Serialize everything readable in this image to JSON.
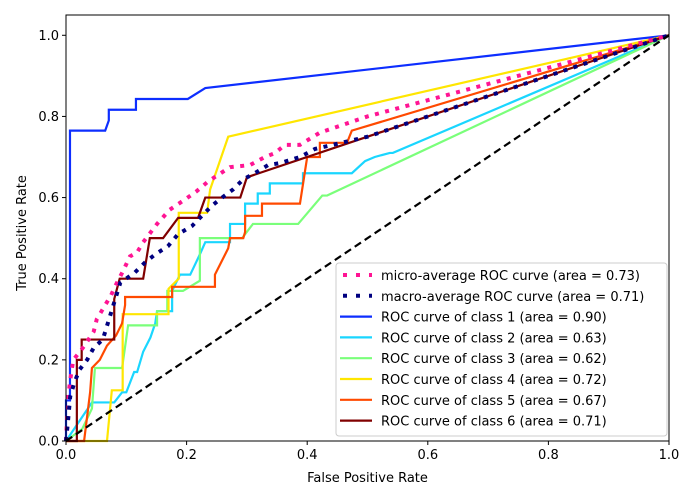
{
  "chart_data": {
    "type": "line",
    "title": "",
    "xlabel": "False Positive Rate",
    "ylabel": "True Positive Rate",
    "xlim": [
      0.0,
      1.0
    ],
    "ylim": [
      0.0,
      1.05
    ],
    "xticks": [
      0.0,
      0.2,
      0.4,
      0.6,
      0.8,
      1.0
    ],
    "yticks": [
      0.0,
      0.2,
      0.4,
      0.6,
      0.8,
      1.0
    ],
    "xtick_labels": [
      "0.0",
      "0.2",
      "0.4",
      "0.6",
      "0.8",
      "1.0"
    ],
    "ytick_labels": [
      "0.0",
      "0.2",
      "0.4",
      "0.6",
      "0.8",
      "1.0"
    ],
    "grid": false,
    "legend_position": "lower-right",
    "series": [
      {
        "name": "micro-average ROC curve (area = 0.73)",
        "color": "#ff1493",
        "style": "dotted",
        "points": [
          [
            0.0,
            0.0
          ],
          [
            0.003,
            0.1
          ],
          [
            0.007,
            0.15
          ],
          [
            0.012,
            0.2
          ],
          [
            0.023,
            0.22
          ],
          [
            0.033,
            0.24
          ],
          [
            0.046,
            0.27
          ],
          [
            0.051,
            0.3
          ],
          [
            0.065,
            0.335
          ],
          [
            0.075,
            0.36
          ],
          [
            0.081,
            0.38
          ],
          [
            0.095,
            0.42
          ],
          [
            0.106,
            0.455
          ],
          [
            0.118,
            0.465
          ],
          [
            0.128,
            0.49
          ],
          [
            0.151,
            0.535
          ],
          [
            0.172,
            0.57
          ],
          [
            0.197,
            0.595
          ],
          [
            0.216,
            0.615
          ],
          [
            0.236,
            0.64
          ],
          [
            0.272,
            0.675
          ],
          [
            0.305,
            0.68
          ],
          [
            0.33,
            0.7
          ],
          [
            0.347,
            0.71
          ],
          [
            0.363,
            0.73
          ],
          [
            0.388,
            0.73
          ],
          [
            0.421,
            0.76
          ],
          [
            0.5,
            0.8
          ],
          [
            0.75,
            0.9
          ],
          [
            1.0,
            1.0
          ]
        ]
      },
      {
        "name": "macro-average ROC curve (area = 0.71)",
        "color": "#000080",
        "style": "dotted",
        "points": [
          [
            0.0,
            0.0
          ],
          [
            0.003,
            0.044
          ],
          [
            0.007,
            0.11
          ],
          [
            0.013,
            0.14
          ],
          [
            0.022,
            0.175
          ],
          [
            0.035,
            0.2
          ],
          [
            0.046,
            0.23
          ],
          [
            0.061,
            0.25
          ],
          [
            0.09,
            0.39
          ],
          [
            0.114,
            0.415
          ],
          [
            0.131,
            0.44
          ],
          [
            0.148,
            0.46
          ],
          [
            0.169,
            0.48
          ],
          [
            0.186,
            0.51
          ],
          [
            0.209,
            0.53
          ],
          [
            0.222,
            0.55
          ],
          [
            0.242,
            0.58
          ],
          [
            0.259,
            0.6
          ],
          [
            0.277,
            0.62
          ],
          [
            0.294,
            0.645
          ],
          [
            0.313,
            0.66
          ],
          [
            0.335,
            0.68
          ],
          [
            0.355,
            0.685
          ],
          [
            0.388,
            0.7
          ],
          [
            0.413,
            0.72
          ],
          [
            0.5,
            0.75
          ],
          [
            0.75,
            0.875
          ],
          [
            1.0,
            1.0
          ]
        ]
      },
      {
        "name": "ROC curve of class 1 (area = 0.90)",
        "color": "#0d2eff",
        "style": "solid",
        "points": [
          [
            0.0,
            0.0
          ],
          [
            0.0,
            0.1
          ],
          [
            0.0066,
            0.1
          ],
          [
            0.0066,
            0.765
          ],
          [
            0.065,
            0.765
          ],
          [
            0.071,
            0.79
          ],
          [
            0.071,
            0.8165
          ],
          [
            0.116,
            0.8165
          ],
          [
            0.116,
            0.843
          ],
          [
            0.202,
            0.843
          ],
          [
            0.231,
            0.87
          ],
          [
            1.0,
            1.0
          ]
        ]
      },
      {
        "name": "ROC curve of class 2 (area = 0.63)",
        "color": "#1ad6ff",
        "style": "solid",
        "points": [
          [
            0.0,
            0.0
          ],
          [
            0.043,
            0.095
          ],
          [
            0.08,
            0.095
          ],
          [
            0.093,
            0.12
          ],
          [
            0.1,
            0.12
          ],
          [
            0.113,
            0.17
          ],
          [
            0.118,
            0.17
          ],
          [
            0.128,
            0.22
          ],
          [
            0.14,
            0.255
          ],
          [
            0.148,
            0.29
          ],
          [
            0.151,
            0.32
          ],
          [
            0.176,
            0.32
          ],
          [
            0.176,
            0.37
          ],
          [
            0.189,
            0.41
          ],
          [
            0.206,
            0.41
          ],
          [
            0.222,
            0.46
          ],
          [
            0.231,
            0.49
          ],
          [
            0.272,
            0.49
          ],
          [
            0.272,
            0.535
          ],
          [
            0.297,
            0.535
          ],
          [
            0.297,
            0.585
          ],
          [
            0.318,
            0.585
          ],
          [
            0.318,
            0.61
          ],
          [
            0.338,
            0.61
          ],
          [
            0.338,
            0.635
          ],
          [
            0.393,
            0.635
          ],
          [
            0.393,
            0.66
          ],
          [
            0.474,
            0.66
          ],
          [
            0.496,
            0.69
          ],
          [
            0.512,
            0.7
          ],
          [
            0.537,
            0.71
          ],
          [
            0.542,
            0.71
          ],
          [
            1.0,
            1.0
          ]
        ]
      },
      {
        "name": "ROC curve of class 3 (area = 0.62)",
        "color": "#7aff7a",
        "style": "solid",
        "points": [
          [
            0.0,
            0.0
          ],
          [
            0.027,
            0.03
          ],
          [
            0.043,
            0.08
          ],
          [
            0.048,
            0.18
          ],
          [
            0.093,
            0.18
          ],
          [
            0.103,
            0.285
          ],
          [
            0.151,
            0.285
          ],
          [
            0.151,
            0.32
          ],
          [
            0.168,
            0.32
          ],
          [
            0.168,
            0.37
          ],
          [
            0.194,
            0.37
          ],
          [
            0.222,
            0.395
          ],
          [
            0.222,
            0.5
          ],
          [
            0.292,
            0.5
          ],
          [
            0.31,
            0.535
          ],
          [
            0.385,
            0.535
          ],
          [
            0.425,
            0.605
          ],
          [
            0.433,
            0.605
          ],
          [
            1.0,
            1.0
          ]
        ]
      },
      {
        "name": "ROC curve of class 4 (area = 0.72)",
        "color": "#ffe600",
        "style": "solid",
        "points": [
          [
            0.0,
            0.0
          ],
          [
            0.068,
            0.0
          ],
          [
            0.076,
            0.125
          ],
          [
            0.094,
            0.125
          ],
          [
            0.094,
            0.3125
          ],
          [
            0.17,
            0.3125
          ],
          [
            0.17,
            0.375
          ],
          [
            0.187,
            0.4
          ],
          [
            0.187,
            0.5625
          ],
          [
            0.234,
            0.5625
          ],
          [
            0.239,
            0.62
          ],
          [
            0.269,
            0.75
          ],
          [
            1.0,
            1.0
          ]
        ]
      },
      {
        "name": "ROC curve of class 5 (area = 0.67)",
        "color": "#ff4a00",
        "style": "solid",
        "points": [
          [
            0.0,
            0.0
          ],
          [
            0.03,
            0.0
          ],
          [
            0.04,
            0.12
          ],
          [
            0.043,
            0.18
          ],
          [
            0.056,
            0.2
          ],
          [
            0.068,
            0.235
          ],
          [
            0.083,
            0.26
          ],
          [
            0.093,
            0.29
          ],
          [
            0.098,
            0.335
          ],
          [
            0.098,
            0.355
          ],
          [
            0.176,
            0.355
          ],
          [
            0.176,
            0.38
          ],
          [
            0.247,
            0.38
          ],
          [
            0.247,
            0.41
          ],
          [
            0.269,
            0.475
          ],
          [
            0.272,
            0.5
          ],
          [
            0.294,
            0.5
          ],
          [
            0.297,
            0.515
          ],
          [
            0.297,
            0.555
          ],
          [
            0.325,
            0.555
          ],
          [
            0.325,
            0.585
          ],
          [
            0.388,
            0.585
          ],
          [
            0.4,
            0.7
          ],
          [
            0.421,
            0.7
          ],
          [
            0.421,
            0.735
          ],
          [
            0.466,
            0.735
          ],
          [
            0.474,
            0.765
          ],
          [
            1.0,
            1.0
          ]
        ]
      },
      {
        "name": "ROC curve of class 6 (area = 0.71)",
        "color": "#800000",
        "style": "solid",
        "points": [
          [
            0.0,
            0.0
          ],
          [
            0.018,
            0.0
          ],
          [
            0.018,
            0.2
          ],
          [
            0.026,
            0.2
          ],
          [
            0.026,
            0.25
          ],
          [
            0.08,
            0.25
          ],
          [
            0.08,
            0.35
          ],
          [
            0.089,
            0.4
          ],
          [
            0.128,
            0.4
          ],
          [
            0.139,
            0.5
          ],
          [
            0.161,
            0.5
          ],
          [
            0.186,
            0.55
          ],
          [
            0.219,
            0.55
          ],
          [
            0.231,
            0.6
          ],
          [
            0.289,
            0.6
          ],
          [
            0.3,
            0.65
          ],
          [
            1.0,
            1.0
          ]
        ]
      }
    ],
    "reference_line": {
      "name": "chance diagonal",
      "color": "#000000",
      "style": "dashed",
      "points": [
        [
          0.0,
          0.0
        ],
        [
          1.0,
          1.0
        ]
      ]
    },
    "legend": [
      "micro-average ROC curve (area = 0.73)",
      "macro-average ROC curve (area = 0.71)",
      "ROC curve of class 1 (area = 0.90)",
      "ROC curve of class 2 (area = 0.63)",
      "ROC curve of class 3 (area = 0.62)",
      "ROC curve of class 4 (area = 0.72)",
      "ROC curve of class 5 (area = 0.67)",
      "ROC curve of class 6 (area = 0.71)"
    ]
  }
}
